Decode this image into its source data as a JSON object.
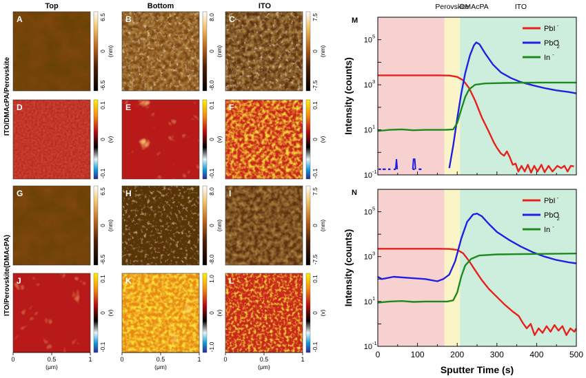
{
  "columns": [
    "Top",
    "Bottom",
    "ITO"
  ],
  "row_groups": [
    "ITO/DMAcPA/Perovskite",
    "ITO/Perovskite(DMAcPA)"
  ],
  "panels": [
    {
      "letter": "A",
      "kind": "height",
      "scale": [
        "6.5",
        "0",
        "-6.5"
      ],
      "unit": "(nm)"
    },
    {
      "letter": "B",
      "kind": "height",
      "scale": [
        "8.0",
        "0",
        "-8.0"
      ],
      "unit": "(nm)"
    },
    {
      "letter": "C",
      "kind": "height",
      "scale": [
        "7.5",
        "0",
        "-7.5"
      ],
      "unit": "(nm)"
    },
    {
      "letter": "D",
      "kind": "potential",
      "scale": [
        "0.1",
        "0",
        "-0.1"
      ],
      "unit": "(v)"
    },
    {
      "letter": "E",
      "kind": "potential",
      "scale": [
        "0.1",
        "0",
        "-0.1"
      ],
      "unit": "(v)"
    },
    {
      "letter": "F",
      "kind": "potential",
      "scale": [
        "0.1",
        "0",
        "-0.1"
      ],
      "unit": "(v)"
    },
    {
      "letter": "G",
      "kind": "height",
      "scale": [
        "6.5",
        "0",
        "-6.5"
      ],
      "unit": "(nm)"
    },
    {
      "letter": "H",
      "kind": "height",
      "scale": [
        "8.0",
        "0",
        "-8.0"
      ],
      "unit": "(nm)"
    },
    {
      "letter": "I",
      "kind": "height",
      "scale": [
        "7.5",
        "0",
        "-7.5"
      ],
      "unit": "(nm)"
    },
    {
      "letter": "J",
      "kind": "potential",
      "scale": [
        "0.1",
        "0",
        "-0.1"
      ],
      "unit": "(v)"
    },
    {
      "letter": "K",
      "kind": "potential",
      "scale": [
        "1.0",
        "0",
        "-1.0"
      ],
      "unit": "(v)"
    },
    {
      "letter": "L",
      "kind": "potential",
      "scale": [
        "0.1",
        "0",
        "-0.1"
      ],
      "unit": "(v)"
    }
  ],
  "map_axis": {
    "ticks": [
      "0",
      "0.5",
      "1"
    ],
    "label": "(μm)"
  },
  "region_labels": [
    "Perovskite",
    "DMAcPA",
    "ITO"
  ],
  "chart_data": [
    {
      "type": "line",
      "letter": "M",
      "xlabel": "",
      "ylabel": "Intensity (counts)",
      "xlim": [
        0,
        500
      ],
      "ylim_log10": [
        -1,
        6
      ],
      "yticks": [
        {
          "e": -1,
          "label": "10",
          "sup": "-1"
        },
        {
          "e": 1,
          "label": "10",
          "sup": "1"
        },
        {
          "e": 3,
          "label": "10",
          "sup": "3"
        },
        {
          "e": 5,
          "label": "10",
          "sup": "5"
        }
      ],
      "regions": [
        {
          "from": 0,
          "to": 168,
          "color": "#f7d0d0"
        },
        {
          "from": 168,
          "to": 207,
          "color": "#fbf4c6"
        },
        {
          "from": 207,
          "to": 500,
          "color": "#cdeedd"
        }
      ],
      "series": [
        {
          "name": "PbI",
          "sup": "-",
          "color": "#e8201c",
          "logy": [
            [
              0,
              3.42
            ],
            [
              150,
              3.42
            ],
            [
              180,
              3.41
            ],
            [
              200,
              3.35
            ],
            [
              215,
              3.2
            ],
            [
              230,
              2.85
            ],
            [
              245,
              2.3
            ],
            [
              262,
              1.55
            ],
            [
              280,
              0.9
            ],
            [
              292,
              0.45
            ],
            [
              300,
              0.2
            ],
            [
              310,
              -0.05
            ],
            [
              318,
              -0.15
            ],
            [
              325,
              0.05
            ],
            [
              332,
              -0.2
            ],
            [
              340,
              -0.55
            ],
            [
              347,
              -0.5
            ],
            [
              354,
              -0.85
            ],
            [
              362,
              -0.6
            ],
            [
              370,
              -0.85
            ],
            [
              378,
              -0.55
            ],
            [
              386,
              -0.9
            ],
            [
              394,
              -0.6
            ],
            [
              402,
              -0.85
            ],
            [
              412,
              -0.55
            ],
            [
              420,
              -0.88
            ],
            [
              430,
              -0.6
            ],
            [
              440,
              -0.85
            ],
            [
              452,
              -0.6
            ],
            [
              462,
              -0.7
            ],
            [
              470,
              -0.6
            ],
            [
              478,
              -0.85
            ],
            [
              486,
              -0.6
            ],
            [
              494,
              -0.62
            ]
          ]
        },
        {
          "name": "PbO",
          "sub": "2",
          "sup": "-",
          "color": "#1f1fe6",
          "dashed_low": true,
          "logy": [
            [
              180,
              -0.7
            ],
            [
              190,
              0.3
            ],
            [
              200,
              1.5
            ],
            [
              210,
              2.6
            ],
            [
              220,
              3.5
            ],
            [
              232,
              4.3
            ],
            [
              242,
              4.75
            ],
            [
              248,
              4.88
            ],
            [
              256,
              4.8
            ],
            [
              270,
              4.4
            ],
            [
              290,
              3.9
            ],
            [
              310,
              3.55
            ],
            [
              335,
              3.3
            ],
            [
              360,
              3.12
            ],
            [
              390,
              2.98
            ],
            [
              420,
              2.85
            ],
            [
              450,
              2.75
            ],
            [
              480,
              2.68
            ],
            [
              500,
              2.62
            ]
          ]
        },
        {
          "name": "In",
          "sup": "-",
          "color": "#1e8a1e",
          "logy": [
            [
              0,
              0.95
            ],
            [
              30,
              1.0
            ],
            [
              60,
              1.02
            ],
            [
              90,
              0.98
            ],
            [
              120,
              1.0
            ],
            [
              150,
              1.0
            ],
            [
              170,
              1.0
            ],
            [
              190,
              1.02
            ],
            [
              200,
              1.3
            ],
            [
              210,
              1.9
            ],
            [
              220,
              2.45
            ],
            [
              230,
              2.8
            ],
            [
              245,
              3.0
            ],
            [
              270,
              3.06
            ],
            [
              320,
              3.08
            ],
            [
              400,
              3.1
            ],
            [
              500,
              3.1
            ]
          ]
        }
      ]
    },
    {
      "type": "line",
      "letter": "N",
      "xlabel": "Sputter Time (s)",
      "ylabel": "Intensity (counts)",
      "xlim": [
        0,
        500
      ],
      "ylim_log10": [
        -1,
        6
      ],
      "xticks": [
        "0",
        "50",
        "100",
        "150",
        "200",
        "250",
        "300",
        "350",
        "400",
        "450",
        "500"
      ],
      "yticks": [
        {
          "e": -1,
          "label": "10",
          "sup": "-1"
        },
        {
          "e": 1,
          "label": "10",
          "sup": "1"
        },
        {
          "e": 3,
          "label": "10",
          "sup": "3"
        },
        {
          "e": 5,
          "label": "10",
          "sup": "5"
        }
      ],
      "regions": [
        {
          "from": 0,
          "to": 168,
          "color": "#f7d0d0"
        },
        {
          "from": 168,
          "to": 207,
          "color": "#fbf4c6"
        },
        {
          "from": 207,
          "to": 500,
          "color": "#cdeedd"
        }
      ],
      "series": [
        {
          "name": "PbI",
          "sup": "-",
          "color": "#e8201c",
          "logy": [
            [
              0,
              3.35
            ],
            [
              150,
              3.35
            ],
            [
              180,
              3.34
            ],
            [
              200,
              3.3
            ],
            [
              215,
              3.15
            ],
            [
              230,
              2.8
            ],
            [
              245,
              2.4
            ],
            [
              262,
              1.95
            ],
            [
              280,
              1.55
            ],
            [
              300,
              1.2
            ],
            [
              320,
              0.85
            ],
            [
              340,
              0.55
            ],
            [
              355,
              0.35
            ],
            [
              365,
              0.05
            ],
            [
              375,
              -0.2
            ],
            [
              385,
              0.0
            ],
            [
              395,
              -0.5
            ],
            [
              405,
              -0.2
            ],
            [
              415,
              -0.4
            ],
            [
              425,
              -0.1
            ],
            [
              435,
              -0.35
            ],
            [
              445,
              -0.05
            ],
            [
              455,
              -0.3
            ],
            [
              465,
              -0.1
            ],
            [
              475,
              -0.5
            ],
            [
              485,
              -0.2
            ],
            [
              495,
              -0.35
            ],
            [
              500,
              -0.2
            ]
          ]
        },
        {
          "name": "PbO",
          "sub": "2",
          "sup": "-",
          "color": "#1f1fe6",
          "logy": [
            [
              0,
              2.1
            ],
            [
              10,
              2.0
            ],
            [
              40,
              2.1
            ],
            [
              80,
              2.05
            ],
            [
              120,
              2.0
            ],
            [
              150,
              1.9
            ],
            [
              165,
              2.0
            ],
            [
              180,
              2.2
            ],
            [
              195,
              2.8
            ],
            [
              210,
              3.8
            ],
            [
              225,
              4.55
            ],
            [
              240,
              4.88
            ],
            [
              250,
              4.92
            ],
            [
              262,
              4.8
            ],
            [
              280,
              4.45
            ],
            [
              300,
              4.1
            ],
            [
              330,
              3.75
            ],
            [
              360,
              3.45
            ],
            [
              390,
              3.2
            ],
            [
              420,
              3.0
            ],
            [
              450,
              2.85
            ],
            [
              480,
              2.75
            ],
            [
              500,
              2.7
            ]
          ]
        },
        {
          "name": "In",
          "sup": "-",
          "color": "#1e8a1e",
          "logy": [
            [
              0,
              0.95
            ],
            [
              30,
              1.0
            ],
            [
              60,
              1.02
            ],
            [
              90,
              0.98
            ],
            [
              120,
              1.0
            ],
            [
              150,
              1.0
            ],
            [
              175,
              1.0
            ],
            [
              190,
              1.05
            ],
            [
              200,
              1.4
            ],
            [
              210,
              2.1
            ],
            [
              220,
              2.6
            ],
            [
              235,
              2.9
            ],
            [
              255,
              3.05
            ],
            [
              300,
              3.1
            ],
            [
              400,
              3.12
            ],
            [
              500,
              3.14
            ]
          ]
        }
      ]
    }
  ]
}
